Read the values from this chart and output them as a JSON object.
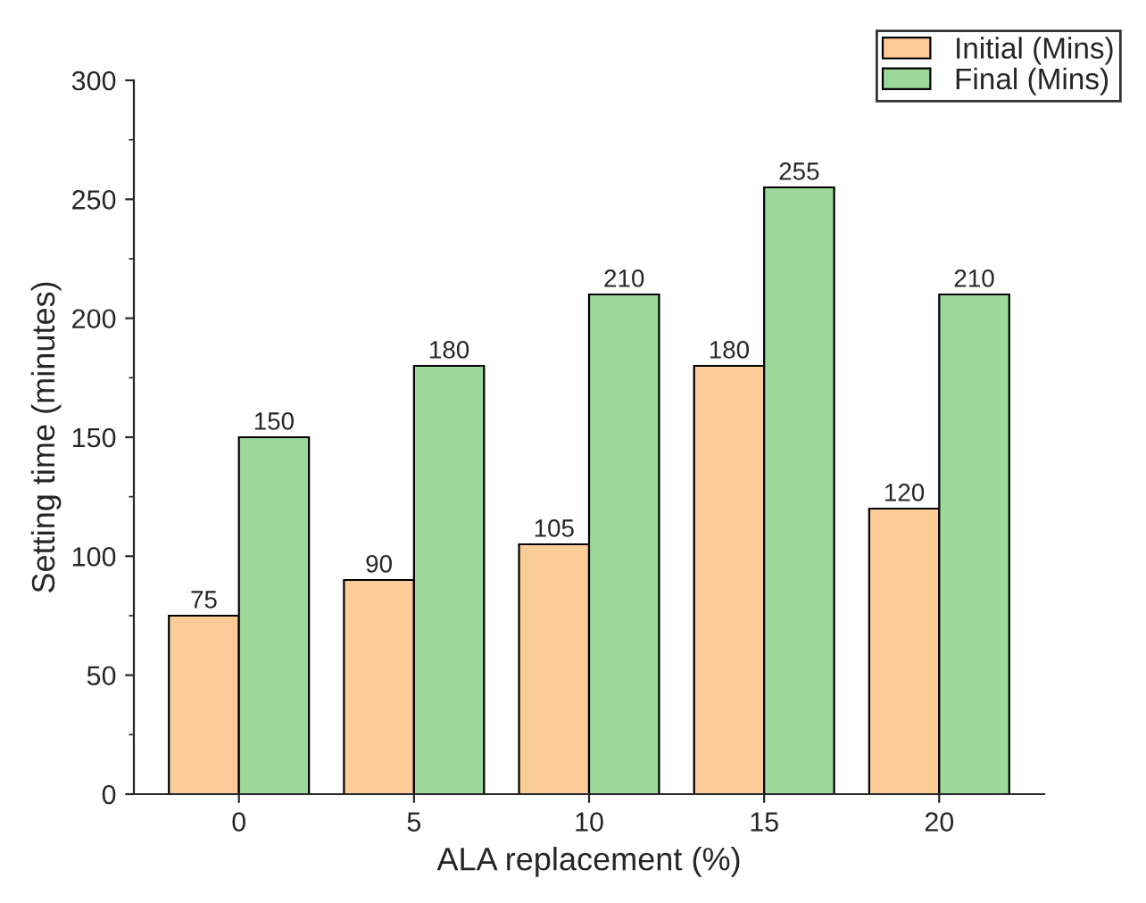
{
  "chart_data": {
    "type": "bar",
    "xlabel": "ALA replacement (%)",
    "ylabel": "Setting time (minutes)",
    "categories": [
      "0",
      "5",
      "10",
      "15",
      "20"
    ],
    "series": [
      {
        "name": "Initial (Mins)",
        "color": "#fdcb98",
        "values": [
          75,
          90,
          105,
          180,
          120
        ]
      },
      {
        "name": "Final (Mins)",
        "color": "#9dd89b",
        "values": [
          150,
          180,
          210,
          255,
          210
        ]
      }
    ],
    "ylim": [
      0,
      300
    ],
    "yticks": [
      0,
      50,
      100,
      150,
      200,
      250,
      300
    ],
    "data_labels": true,
    "legend": "top right",
    "grid": false
  }
}
